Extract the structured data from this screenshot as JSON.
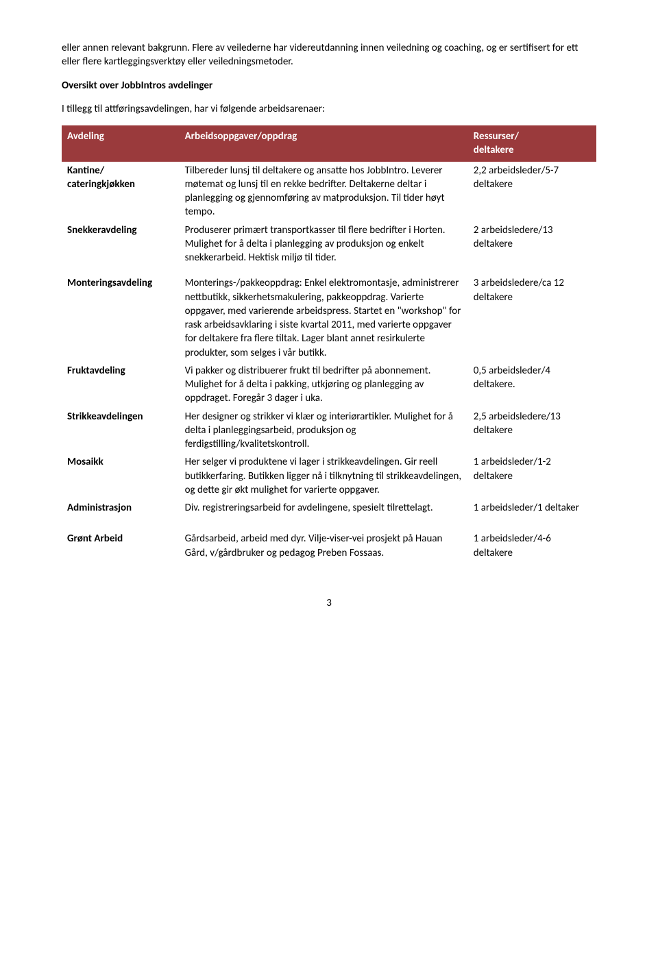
{
  "intro": {
    "p1": "eller annen relevant bakgrunn. Flere av veilederne har videreutdanning innen veiledning og coaching, og er sertifisert for ett eller flere kartleggingsverktøy eller veiledningsmetoder.",
    "heading": "Oversikt over  JobbIntros avdelinger",
    "sub": "I tillegg til attføringsavdelingen, har vi følgende arbeidsarenaer:"
  },
  "table": {
    "header_bg": "#9a3a3c",
    "header_fg": "#ffffff",
    "columns": [
      "Avdeling",
      "Arbeidsoppgaver/oppdrag",
      "Ressurser/\ndeltakere"
    ],
    "groups": [
      {
        "rows": [
          {
            "dept": "Kantine/\ncateringkjøkken",
            "desc": "Tilbereder lunsj til deltakere og ansatte hos JobbIntro. Leverer møtemat og lunsj til en rekke bedrifter. Deltakerne deltar i planlegging og gjennomføring av matproduksjon. Til tider høyt tempo.",
            "res": "2,2 arbeidsleder/5-7 deltakere"
          },
          {
            "dept": "Snekkeravdeling",
            "desc": "Produserer primært transportkasser til flere bedrifter i Horten. Mulighet for å delta i planlegging av produksjon og enkelt snekkerarbeid. Hektisk miljø til tider.",
            "res": "2 arbeidsledere/13 deltakere"
          }
        ]
      },
      {
        "rows": [
          {
            "dept": "Monteringsavdeling",
            "desc": "Monterings-/pakkeoppdrag: Enkel elektromontasje, administrerer nettbutikk, sikkerhetsmakulering, pakkeoppdrag.  Varierte oppgaver, med varierende arbeidspress. Startet en \"workshop\" for rask arbeidsavklaring i siste kvartal 2011, med varierte oppgaver for deltakere fra flere tiltak. Lager blant annet resirkulerte produkter, som selges i vår butikk.",
            "res": "3 arbeidsledere/ca 12 deltakere"
          },
          {
            "dept": "Fruktavdeling",
            "desc": "Vi pakker og distribuerer frukt til bedrifter på abonnement. Mulighet for å delta i pakking, utkjøring og planlegging av oppdraget. Foregår 3 dager i uka.",
            "res": "0,5 arbeidsleder/4 deltakere."
          },
          {
            "dept": "Strikkeavdelingen",
            "desc": "Her designer og strikker vi klær og interiørartikler. Mulighet for å delta i planleggingsarbeid, produksjon og ferdigstilling/kvalitetskontroll.",
            "res": "2,5 arbeidsledere/13 deltakere"
          },
          {
            "dept": "Mosaikk",
            "desc": "Her selger vi produktene vi lager i strikkeavdelingen. Gir reell butikkerfaring. Butikken ligger nå i tilknytning til strikkeavdelingen, og dette gir økt mulighet for varierte oppgaver.",
            "res": "1 arbeidsleder/1-2 deltakere"
          },
          {
            "dept": "Administrasjon",
            "desc": "Div. registreringsarbeid for avdelingene, spesielt tilrettelagt.",
            "res": "1 arbeidsleder/1 deltaker"
          }
        ]
      },
      {
        "rows": [
          {
            "dept": "Grønt Arbeid",
            "desc": "Gårdsarbeid, arbeid med dyr. Vilje-viser-vei prosjekt på Hauan Gård, v/gårdbruker og pedagog Preben Fossaas.",
            "res": "1 arbeidsleder/4-6 deltakere"
          }
        ]
      }
    ]
  },
  "page_number": "3"
}
